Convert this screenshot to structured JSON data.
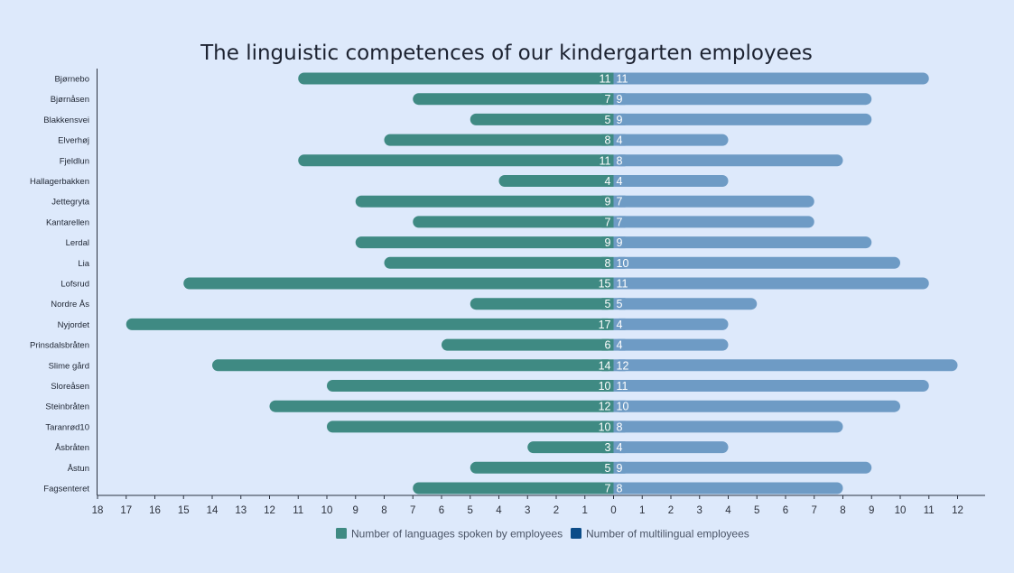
{
  "colors": {
    "background": "#dde9fb",
    "left_bar": "#3f8a83",
    "right_bar": "#6e9bc5",
    "legend_left": "#3f8a83",
    "legend_right": "#0c4c88",
    "axis": "#2b3240"
  },
  "chart_data": {
    "type": "bar",
    "orientation": "horizontal-diverging",
    "title": "The linguistic competences of our kindergarten employees",
    "categories": [
      "Bjørnebo",
      "Bjørnåsen",
      "Blakkensvei",
      "Elverhøj",
      "Fjeldlun",
      "Hallagerbakken",
      "Jettegryta",
      "Kantarellen",
      "Lerdal",
      "Lia",
      "Lofsrud",
      "Nordre Ås",
      "Nyjordet",
      "Prinsdalsbråten",
      "Slime gård",
      "Sloreåsen",
      "Steinbråten",
      "Taranrød10",
      "Åsbråten",
      "Åstun",
      "Fagsenteret"
    ],
    "series": [
      {
        "name": "Number of languages spoken by employees",
        "values": [
          11,
          7,
          5,
          8,
          11,
          4,
          9,
          7,
          9,
          8,
          15,
          5,
          17,
          6,
          14,
          10,
          12,
          10,
          3,
          5,
          7
        ]
      },
      {
        "name": "Number of multilingual employees",
        "values": [
          11,
          9,
          9,
          4,
          8,
          4,
          7,
          7,
          9,
          10,
          11,
          5,
          4,
          4,
          12,
          11,
          10,
          8,
          4,
          9,
          8
        ]
      }
    ],
    "x_ticks": [
      "18",
      "17",
      "16",
      "15",
      "14",
      "13",
      "12",
      "11",
      "10",
      "9",
      "8",
      "7",
      "6",
      "5",
      "4",
      "3",
      "2",
      "1",
      "0",
      "1",
      "2",
      "3",
      "4",
      "5",
      "6",
      "7",
      "8",
      "9",
      "10",
      "11",
      "12"
    ],
    "xlim": [
      -18,
      12
    ],
    "legend_position": "bottom-center",
    "grid": false
  }
}
